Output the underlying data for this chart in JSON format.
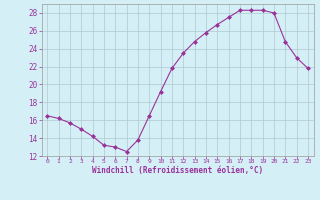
{
  "x": [
    0,
    1,
    2,
    3,
    4,
    5,
    6,
    7,
    8,
    9,
    10,
    11,
    12,
    13,
    14,
    15,
    16,
    17,
    18,
    19,
    20,
    21,
    22,
    23
  ],
  "y": [
    16.5,
    16.2,
    15.7,
    15.0,
    14.2,
    13.2,
    13.0,
    12.5,
    13.8,
    16.5,
    19.2,
    21.8,
    23.5,
    24.8,
    25.8,
    26.7,
    27.5,
    28.3,
    28.3,
    28.3,
    28.0,
    24.8,
    23.0,
    21.8
  ],
  "line_color": "#993399",
  "marker": "D",
  "marker_size": 2.0,
  "bg_color": "#d5eff7",
  "grid_color": "#b0c8d0",
  "xlabel": "Windchill (Refroidissement éolien,°C)",
  "xlabel_color": "#993399",
  "tick_color": "#993399",
  "ylim": [
    12,
    29
  ],
  "yticks": [
    12,
    14,
    16,
    18,
    20,
    22,
    24,
    26,
    28
  ],
  "xticks": [
    0,
    1,
    2,
    3,
    4,
    5,
    6,
    7,
    8,
    9,
    10,
    11,
    12,
    13,
    14,
    15,
    16,
    17,
    18,
    19,
    20,
    21,
    22,
    23
  ],
  "xlim": [
    -0.5,
    23.5
  ]
}
